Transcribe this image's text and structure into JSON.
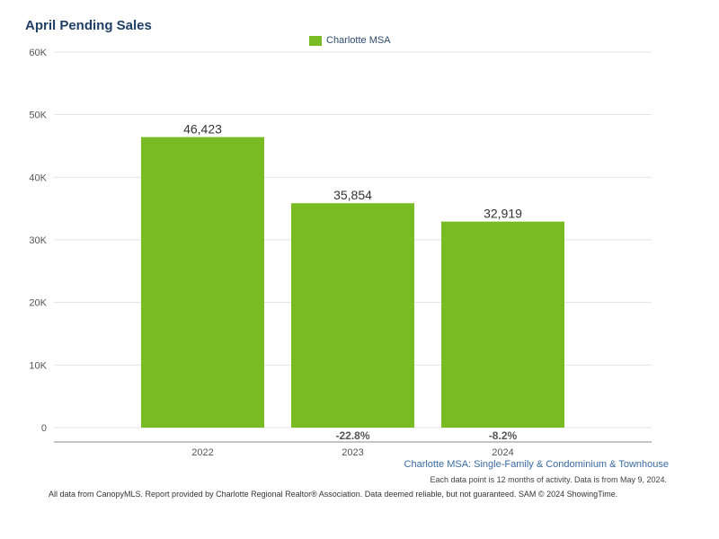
{
  "title": "April Pending Sales",
  "legend": {
    "label": "Charlotte MSA",
    "color": "#78bb22"
  },
  "subtitle": "Charlotte MSA: Single-Family & Condominium & Townhouse",
  "note": "Each data point is 12 months of activity. Data is from May 9, 2024.",
  "footer": "All data from CanopyMLS. Report provided by Charlotte Regional Realtor® Association. Data deemed reliable, but not guaranteed. SAM © 2024 ShowingTime.",
  "chart_data": {
    "type": "bar",
    "title": "April Pending Sales",
    "categories": [
      "2022",
      "2023",
      "2024"
    ],
    "series": [
      {
        "name": "Charlotte MSA",
        "values": [
          46423,
          35854,
          32919
        ],
        "color": "#78bb22"
      }
    ],
    "data_labels": [
      "46,423",
      "35,854",
      "32,919"
    ],
    "change_labels": [
      "",
      "-22.8%",
      "-8.2%"
    ],
    "ylim": [
      0,
      60000
    ],
    "yticks": [
      0,
      10000,
      20000,
      30000,
      40000,
      50000,
      60000
    ],
    "ytick_labels": [
      "0",
      "10K",
      "20K",
      "30K",
      "40K",
      "50K",
      "60K"
    ],
    "grid": true,
    "legend_position": "top-center"
  }
}
